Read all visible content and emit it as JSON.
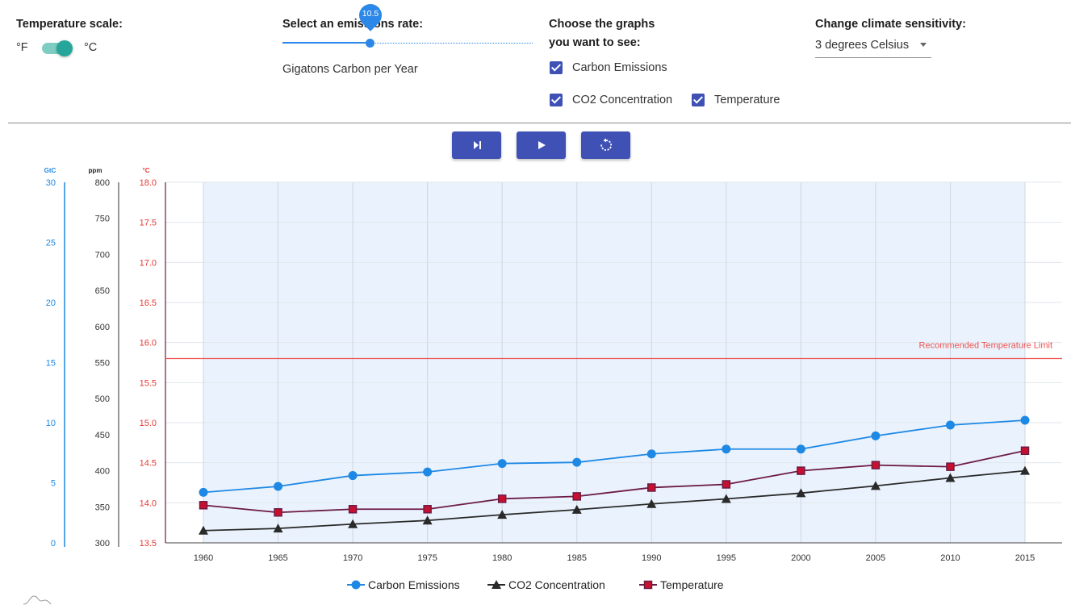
{
  "controls": {
    "temperature_scale": {
      "title": "Temperature scale:",
      "left_label": "°F",
      "right_label": "°C",
      "selected": "°C"
    },
    "emissions": {
      "title": "Select an emissions rate:",
      "value": "10.5",
      "unit_label": "Gigatons Carbon per Year",
      "fraction": 0.35
    },
    "graphs": {
      "title_line1": "Choose the graphs",
      "title_line2": "you want to see:",
      "options": [
        {
          "label": "Carbon Emissions",
          "checked": true
        },
        {
          "label": "CO2 Concentration",
          "checked": true
        },
        {
          "label": "Temperature",
          "checked": true
        }
      ]
    },
    "sensitivity": {
      "title": "Change climate sensitivity:",
      "value": "3 degrees Celsius"
    }
  },
  "toolbar": {
    "step_icon": "skip-next-icon",
    "play_icon": "play-icon",
    "reset_icon": "reset-icon"
  },
  "chart_data": {
    "type": "line",
    "x": [
      1960,
      1965,
      1970,
      1975,
      1980,
      1985,
      1990,
      1995,
      2000,
      2005,
      2010,
      2015
    ],
    "axes": {
      "gtc": {
        "label": "GtC",
        "range": [
          0,
          30
        ],
        "ticks": [
          0,
          5,
          10,
          15,
          20,
          25,
          30
        ],
        "color": "#1e88e5"
      },
      "ppm": {
        "label": "ppm",
        "range": [
          300,
          800
        ],
        "ticks": [
          300,
          350,
          400,
          450,
          500,
          550,
          600,
          650,
          700,
          750,
          800
        ],
        "color": "#222222"
      },
      "temp": {
        "label": "°C",
        "range": [
          13.5,
          18.0
        ],
        "ticks": [
          "13.5",
          "14.0",
          "14.5",
          "15.0",
          "15.5",
          "16.0",
          "16.5",
          "17.0",
          "17.5",
          "18.0"
        ],
        "color": "#e53935"
      }
    },
    "series": [
      {
        "name": "Carbon Emissions",
        "axis": "gtc",
        "color": "#1e88e5",
        "marker": "circle",
        "values": [
          4.2,
          4.7,
          5.6,
          5.9,
          6.6,
          6.7,
          7.4,
          7.8,
          7.8,
          8.9,
          9.8,
          10.2
        ]
      },
      {
        "name": "CO2 Concentration",
        "axis": "ppm",
        "color": "#2a2a2a",
        "marker": "triangle",
        "values": [
          317,
          320,
          326,
          331,
          339,
          346,
          354,
          361,
          369,
          379,
          390,
          400
        ]
      },
      {
        "name": "Temperature",
        "axis": "temp",
        "color": "#6d1a45",
        "marker": "square",
        "values": [
          13.97,
          13.88,
          13.92,
          13.92,
          14.05,
          14.08,
          14.19,
          14.23,
          14.4,
          14.47,
          14.45,
          14.65
        ]
      }
    ],
    "limit_line": {
      "label": "Recommended Temperature Limit",
      "value": 15.8,
      "color": "#ef5350"
    },
    "grid": true,
    "legend_position": "bottom"
  }
}
